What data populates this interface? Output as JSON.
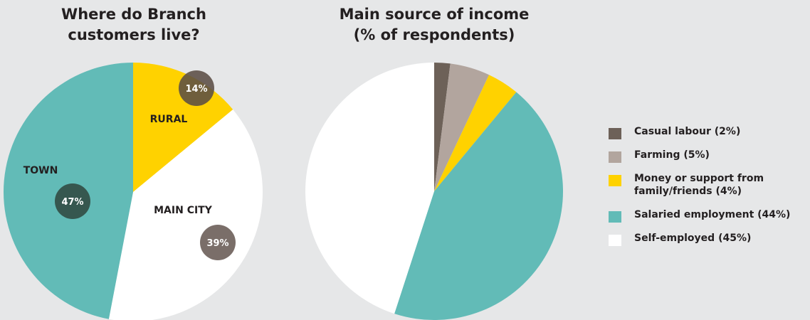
{
  "colors": {
    "background": "#e6e7e8",
    "town": "#62bbb7",
    "rural": "#ffd200",
    "main_city": "#ffffff",
    "badge_town": "#36574f",
    "badge_city": "#7a6e69",
    "badge_rural": "#5b4d44",
    "casual_labour": "#6d6158",
    "farming": "#b2a59e",
    "money_support": "#ffd200",
    "salaried": "#62bbb7",
    "self_employed": "#ffffff"
  },
  "chart_data": [
    {
      "type": "pie",
      "title_lines": [
        "Where do Branch",
        "customers live?"
      ],
      "slices": [
        {
          "label": "RURAL",
          "value": 14,
          "pct_label": "14%",
          "color": "#ffd200",
          "badge_color": "#5b4d44"
        },
        {
          "label": "MAIN CITY",
          "value": 39,
          "pct_label": "39%",
          "color": "#ffffff",
          "badge_color": "#7a6e69"
        },
        {
          "label": "TOWN",
          "value": 47,
          "pct_label": "47%",
          "color": "#62bbb7",
          "badge_color": "#36574f"
        }
      ],
      "start": "12 o'clock",
      "direction": "clockwise"
    },
    {
      "type": "pie",
      "title_lines": [
        "Main source of income",
        "(% of respondents)"
      ],
      "slices": [
        {
          "label": "Casual labour (2%)",
          "value": 2,
          "color": "#6d6158"
        },
        {
          "label": "Farming (5%)",
          "value": 5,
          "color": "#b2a59e"
        },
        {
          "label": "Money or support from family/friends (4%)",
          "label_lines": [
            "Money or support from",
            "family/friends (4%)"
          ],
          "value": 4,
          "color": "#ffd200"
        },
        {
          "label": "Salaried employment (44%)",
          "value": 44,
          "color": "#62bbb7"
        },
        {
          "label": "Self-employed (45%)",
          "value": 45,
          "color": "#ffffff"
        }
      ],
      "start": "12 o'clock",
      "direction": "clockwise",
      "legend_position": "right"
    }
  ]
}
